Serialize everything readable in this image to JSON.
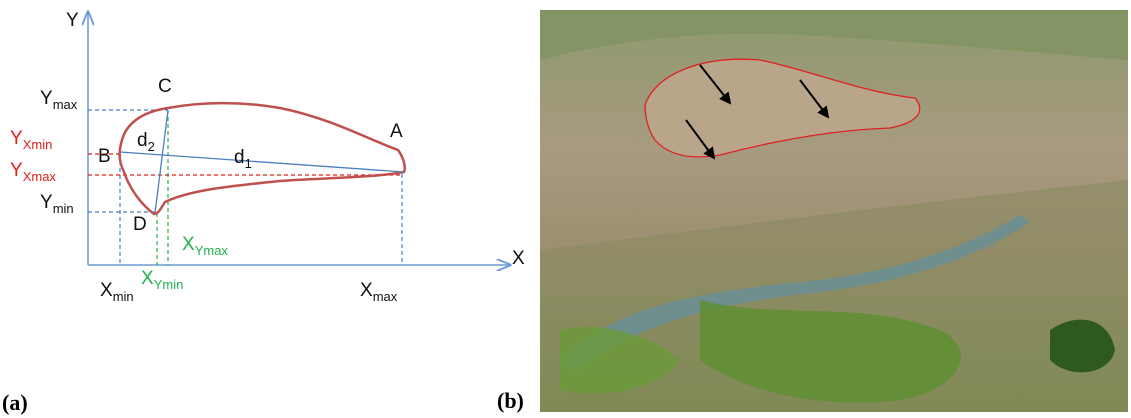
{
  "panel_a": {
    "axis_y": "Y",
    "axis_x": "X",
    "point_a": "A",
    "point_b": "B",
    "point_c": "C",
    "point_d": "D",
    "d1": {
      "base": "d",
      "sub": "1"
    },
    "d2": {
      "base": "d",
      "sub": "2"
    },
    "y_max": {
      "base": "Y",
      "sub": "max"
    },
    "y_xmin": {
      "base": "Y",
      "sub": "Xmin"
    },
    "y_xmax": {
      "base": "Y",
      "sub": "Xmax"
    },
    "y_min": {
      "base": "Y",
      "sub": "min"
    },
    "x_ymax": {
      "base": "X",
      "sub": "Ymax"
    },
    "x_min": {
      "base": "X",
      "sub": "min"
    },
    "x_ymin": {
      "base": "X",
      "sub": "Ymin"
    },
    "x_max": {
      "base": "X",
      "sub": "max"
    },
    "caption": "(a)"
  },
  "panel_b": {
    "caption": "(b)"
  }
}
